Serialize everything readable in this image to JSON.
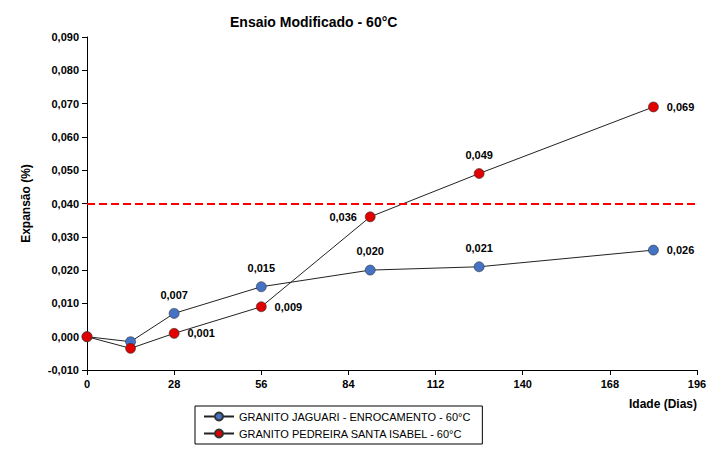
{
  "chart_data": {
    "type": "line",
    "title": "Ensaio Modificado - 60°C",
    "x_label": "Idade (Dias)",
    "y_label": "Expansão (%)",
    "x": [
      0,
      14,
      28,
      56,
      91,
      126,
      182
    ],
    "series": [
      {
        "name": "GRANITO JAGUARI - ENROCAMENTO - 60°C",
        "color": "#4472c4",
        "marker": "circle",
        "values": [
          0,
          -0.0015,
          0.007,
          0.015,
          0.02,
          0.021,
          0.026
        ],
        "value_labels": [
          null,
          null,
          "0,007",
          "0,015",
          "0,020",
          "0,021",
          "0,026"
        ]
      },
      {
        "name": "GRANITO PEDREIRA SANTA ISABEL - 60°C",
        "color": "#e00000",
        "marker": "circle",
        "values": [
          0,
          -0.0035,
          0.001,
          0.009,
          0.036,
          0.049,
          0.069
        ],
        "value_labels": [
          null,
          null,
          "0,001",
          "0,009",
          "0,036",
          "0,049",
          "0,069"
        ]
      }
    ],
    "xlim": [
      0,
      196
    ],
    "xticks": [
      0,
      28,
      56,
      84,
      112,
      140,
      168,
      196
    ],
    "ylim": [
      -0.01,
      0.09
    ],
    "yticks": [
      {
        "value": -0.01,
        "label": "-0,010"
      },
      {
        "value": 0,
        "label": "0,000"
      },
      {
        "value": 0.01,
        "label": "0,010"
      },
      {
        "value": 0.02,
        "label": "0,020"
      },
      {
        "value": 0.03,
        "label": "0,030"
      },
      {
        "value": 0.04,
        "label": "0,040"
      },
      {
        "value": 0.05,
        "label": "0,050"
      },
      {
        "value": 0.06,
        "label": "0,060"
      },
      {
        "value": 0.07,
        "label": "0,070"
      },
      {
        "value": 0.08,
        "label": "0,080"
      },
      {
        "value": 0.09,
        "label": "0,090"
      }
    ],
    "grid": false,
    "legend": "bottom",
    "data_labels": true,
    "reference_lines": [
      {
        "value": 0.04,
        "color": "#ff0000",
        "line_style": "dashed"
      }
    ]
  }
}
